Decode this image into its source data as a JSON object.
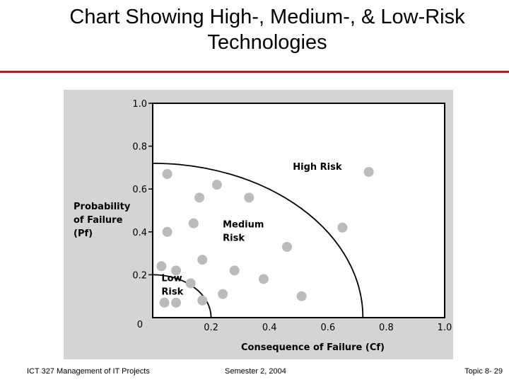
{
  "slide": {
    "title_line1": "Chart Showing High-, Medium-, & Low-Risk",
    "title_line2": "Technologies",
    "accent_color": "#a0242a"
  },
  "footer": {
    "course": "ICT 327 Management of IT Projects",
    "semester": "Semester 2, 2004",
    "topic": "Topic 8- 29"
  },
  "chart_data": {
    "type": "scatter",
    "title": "",
    "xlabel": "Consequence of Failure (Cf)",
    "ylabel_lines": [
      "Probability",
      "of Failure",
      "(Pf)"
    ],
    "xlim": [
      0,
      1.0
    ],
    "ylim": [
      0,
      1.0
    ],
    "x_ticks": [
      {
        "value": 0.2,
        "label": "0.2"
      },
      {
        "value": 0.4,
        "label": "0.4"
      },
      {
        "value": 0.6,
        "label": "0.6"
      },
      {
        "value": 0.8,
        "label": "0.8"
      },
      {
        "value": 1.0,
        "label": "1.0"
      }
    ],
    "y_ticks": [
      {
        "value": 0.2,
        "label": "0.2"
      },
      {
        "value": 0.4,
        "label": "0.4"
      },
      {
        "value": 0.6,
        "label": "0.6"
      },
      {
        "value": 0.8,
        "label": "0.8"
      },
      {
        "value": 1.0,
        "label": "1.0"
      }
    ],
    "origin_label": "0",
    "grid": false,
    "regions": [
      {
        "name": "Low Risk",
        "label_lines": [
          "Low",
          "Risk"
        ],
        "boundary_radius": 0.2
      },
      {
        "name": "Medium Risk",
        "label_lines": [
          "Medium",
          "Risk"
        ],
        "boundary_radius": 0.72
      },
      {
        "name": "High Risk",
        "label_lines": [
          "High Risk"
        ]
      }
    ],
    "points": [
      {
        "x": 0.04,
        "y": 0.07
      },
      {
        "x": 0.08,
        "y": 0.07
      },
      {
        "x": 0.17,
        "y": 0.08
      },
      {
        "x": 0.03,
        "y": 0.24
      },
      {
        "x": 0.08,
        "y": 0.22
      },
      {
        "x": 0.13,
        "y": 0.16
      },
      {
        "x": 0.17,
        "y": 0.27
      },
      {
        "x": 0.24,
        "y": 0.11
      },
      {
        "x": 0.28,
        "y": 0.22
      },
      {
        "x": 0.38,
        "y": 0.18
      },
      {
        "x": 0.51,
        "y": 0.1
      },
      {
        "x": 0.46,
        "y": 0.33
      },
      {
        "x": 0.05,
        "y": 0.4
      },
      {
        "x": 0.14,
        "y": 0.44
      },
      {
        "x": 0.16,
        "y": 0.56
      },
      {
        "x": 0.22,
        "y": 0.62
      },
      {
        "x": 0.33,
        "y": 0.56
      },
      {
        "x": 0.05,
        "y": 0.67
      },
      {
        "x": 0.65,
        "y": 0.42
      },
      {
        "x": 0.74,
        "y": 0.68
      }
    ],
    "colors": {
      "panel": "#d4d4d4",
      "plot_area": "#ffffff",
      "axis": "#000000",
      "boundary": "#000000",
      "point": "#bbbbbb"
    }
  }
}
